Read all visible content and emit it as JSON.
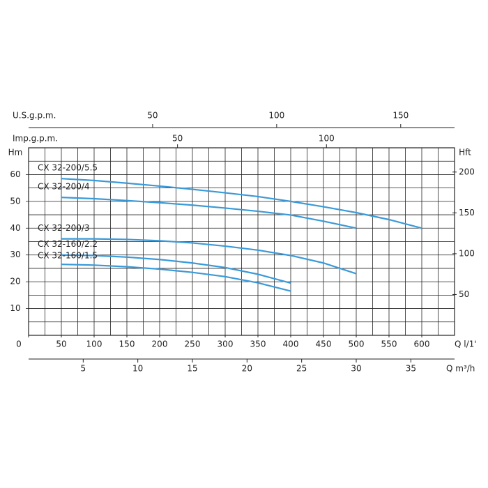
{
  "chart_data": {
    "type": "line",
    "x_label": "Q l/1'",
    "y_label": "Hm",
    "y2_label": "Hft",
    "x": [
      50,
      100,
      150,
      200,
      250,
      300,
      350,
      400,
      450,
      500,
      550,
      600
    ],
    "xlim": [
      0,
      650
    ],
    "xticks": [
      0,
      50,
      100,
      150,
      200,
      250,
      300,
      350,
      400,
      450,
      500,
      550,
      600
    ],
    "ylim": [
      0,
      70
    ],
    "yticks": [
      10,
      20,
      30,
      40,
      50,
      60
    ],
    "y2lim": [
      0,
      229.7
    ],
    "y2ticks": [
      50,
      100,
      150,
      200
    ],
    "grid": true,
    "color": "#3a9ad9",
    "series": [
      {
        "name": "CX 32-200/5.5",
        "values": [
          58.5,
          57.8,
          56.8,
          55.7,
          54.5,
          53.2,
          51.8,
          50,
          48,
          45.8,
          43.2,
          40
        ]
      },
      {
        "name": "CX 32-200/4",
        "values": [
          51.5,
          51,
          50.3,
          49.5,
          48.6,
          47.5,
          46.3,
          44.9,
          42.6,
          40,
          null,
          null
        ]
      },
      {
        "name": "CX 32-200/3",
        "values": [
          36,
          36,
          35.8,
          35.3,
          34.5,
          33.3,
          31.8,
          29.8,
          27,
          23,
          null,
          null
        ]
      },
      {
        "name": "CX 32-160/2.2",
        "values": [
          30,
          29.8,
          29.2,
          28.3,
          27,
          25.3,
          22.8,
          19.5,
          null,
          null,
          null,
          null
        ]
      },
      {
        "name": "CX 32-160/1.5",
        "values": [
          26.5,
          26.2,
          25.6,
          24.7,
          23.5,
          21.9,
          19.6,
          16.5,
          null,
          null,
          null,
          null
        ]
      }
    ],
    "top_axes": [
      {
        "label": "U.S.g.p.m.",
        "lim": [
          0,
          171.7
        ],
        "ticks": [
          50,
          100,
          150
        ]
      },
      {
        "label": "Imp.g.p.m.",
        "lim": [
          0,
          143
        ],
        "ticks": [
          50,
          100
        ]
      }
    ],
    "bottom_axis": {
      "label": "Q m³/h",
      "lim": [
        0,
        39
      ],
      "ticks": [
        5,
        10,
        15,
        20,
        25,
        30,
        35
      ]
    }
  }
}
